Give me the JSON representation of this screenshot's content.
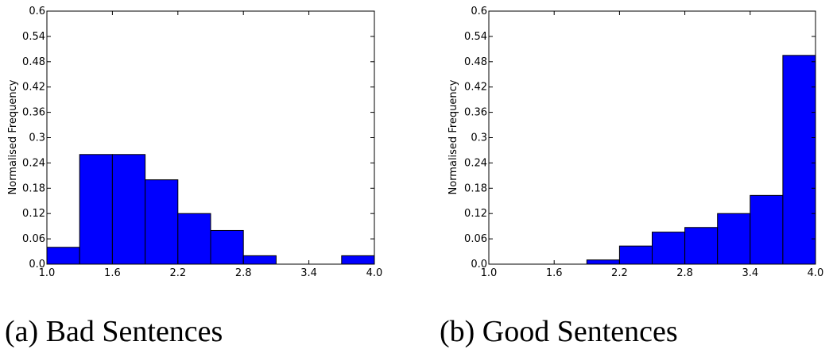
{
  "chart_data": [
    {
      "type": "bar",
      "caption": "(a) Bad Sentences",
      "ylabel": "Normalised Frequency",
      "xlim": [
        1.0,
        4.0
      ],
      "ylim": [
        0.0,
        0.6
      ],
      "xticks": [
        "1.0",
        "1.6",
        "2.2",
        "2.8",
        "3.4",
        "4.0"
      ],
      "yticks": [
        "0.0",
        "0.06",
        "0.12",
        "0.18",
        "0.24",
        "0.3",
        "0.36",
        "0.42",
        "0.48",
        "0.54",
        "0.6"
      ],
      "bin_edges": [
        1.0,
        1.3,
        1.6,
        1.9,
        2.2,
        2.5,
        2.8,
        3.1,
        3.4,
        3.7,
        4.0
      ],
      "values": [
        0.04,
        0.26,
        0.26,
        0.2,
        0.12,
        0.08,
        0.02,
        0.0,
        0.0,
        0.02
      ],
      "bar_color": "#0000ff",
      "grid": false
    },
    {
      "type": "bar",
      "caption": "(b) Good Sentences",
      "ylabel": "Normalised Frequency",
      "xlim": [
        1.0,
        4.0
      ],
      "ylim": [
        0.0,
        0.6
      ],
      "xticks": [
        "1.0",
        "1.6",
        "2.2",
        "2.8",
        "3.4",
        "4.0"
      ],
      "yticks": [
        "0.0",
        "0.06",
        "0.12",
        "0.18",
        "0.24",
        "0.3",
        "0.36",
        "0.42",
        "0.48",
        "0.54",
        "0.6"
      ],
      "bin_edges": [
        1.0,
        1.3,
        1.6,
        1.9,
        2.2,
        2.5,
        2.8,
        3.1,
        3.4,
        3.7,
        4.0
      ],
      "values": [
        0.0,
        0.0,
        0.0,
        0.01,
        0.043,
        0.076,
        0.087,
        0.12,
        0.163,
        0.495
      ],
      "bar_color": "#0000ff",
      "grid": false
    }
  ]
}
